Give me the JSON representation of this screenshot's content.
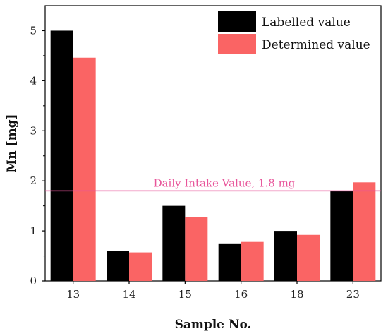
{
  "chart_data": {
    "type": "bar",
    "categories": [
      "13",
      "14",
      "15",
      "16",
      "18",
      "23"
    ],
    "series": [
      {
        "name": "Labelled value",
        "color": "#000000",
        "values": [
          5.0,
          0.6,
          1.5,
          0.75,
          1.0,
          1.8
        ]
      },
      {
        "name": "Determined value",
        "color": "#fa6464",
        "values": [
          4.46,
          0.57,
          1.28,
          0.78,
          0.92,
          1.97
        ]
      }
    ],
    "xlabel": "Sample No.",
    "ylabel": "Mn [mg]",
    "ylim": [
      0,
      5.5
    ],
    "yticks": [
      "0",
      "1",
      "2",
      "3",
      "4",
      "5"
    ],
    "reference_line": {
      "value": 1.8,
      "label": "Daily Intake Value, 1.8 mg",
      "color": "#e8559a"
    },
    "legend_position": "top-right",
    "grid": false
  }
}
